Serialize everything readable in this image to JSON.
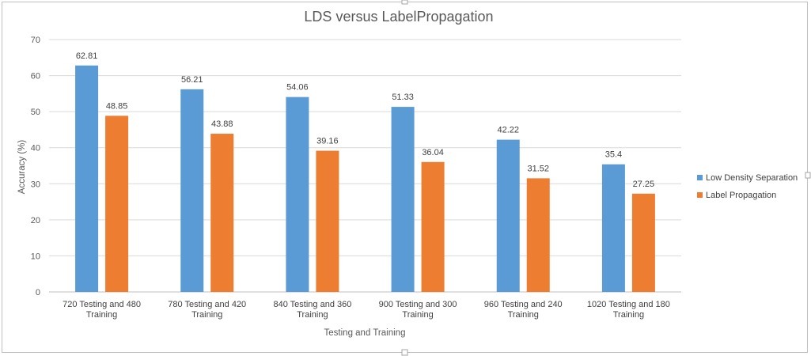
{
  "chart_data": {
    "type": "bar",
    "title": "LDS versus LabelPropagation",
    "xlabel": "Testing and Training",
    "ylabel": "Accuracy (%)",
    "ylim": [
      0,
      70
    ],
    "yticks": [
      0,
      10,
      20,
      30,
      40,
      50,
      60,
      70
    ],
    "grid": true,
    "legend_position": "right",
    "categories": [
      [
        "720 Testing and 480",
        "Training"
      ],
      [
        "780 Testing and 420",
        "Training"
      ],
      [
        "840 Testing and 360",
        "Training"
      ],
      [
        "900 Testing and 300",
        "Training"
      ],
      [
        "960 Testing and 240",
        "Training"
      ],
      [
        "1020 Testing and 180",
        "Training"
      ]
    ],
    "series": [
      {
        "name": "Low Density Separation",
        "color": "#5B9BD5",
        "values": [
          62.81,
          56.21,
          54.06,
          51.33,
          42.22,
          35.4
        ],
        "labels": [
          "62.81",
          "56.21",
          "54.06",
          "51.33",
          "42.22",
          "35.4"
        ]
      },
      {
        "name": "Label Propagation",
        "color": "#ED7D31",
        "values": [
          48.85,
          43.88,
          39.16,
          36.04,
          31.52,
          27.25
        ],
        "labels": [
          "48.85",
          "43.88",
          "39.16",
          "36.04",
          "31.52",
          "27.25"
        ]
      }
    ]
  }
}
